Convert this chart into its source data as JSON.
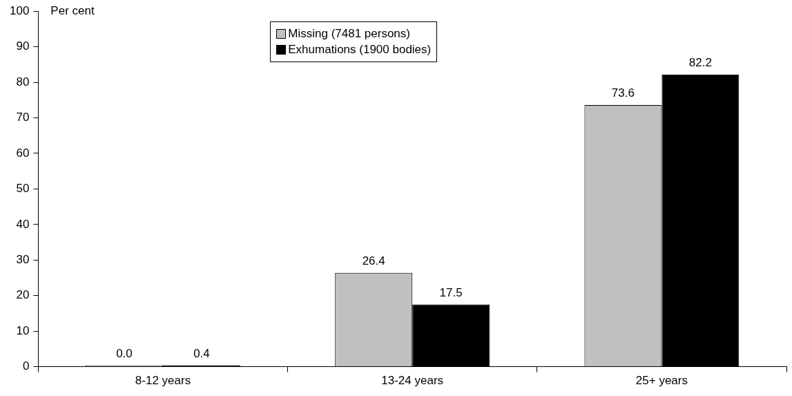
{
  "chart_data": {
    "type": "bar",
    "ylabel": "Per cent",
    "categories": [
      "8-12 years",
      "13-24 years",
      "25+ years"
    ],
    "series": [
      {
        "name": "Missing (7481 persons)",
        "color": "#c0c0c0",
        "values": [
          0.0,
          26.4,
          73.6
        ],
        "value_labels": [
          "0.0",
          "26.4",
          "73.6"
        ]
      },
      {
        "name": "Exhumations (1900 bodies)",
        "color": "#000000",
        "values": [
          0.4,
          17.5,
          82.2
        ],
        "value_labels": [
          "0.4",
          "17.5",
          "82.2"
        ]
      }
    ],
    "ylim": [
      0,
      100
    ],
    "yticks": [
      0,
      10,
      20,
      30,
      40,
      50,
      60,
      70,
      80,
      90,
      100
    ],
    "legend": "top"
  }
}
